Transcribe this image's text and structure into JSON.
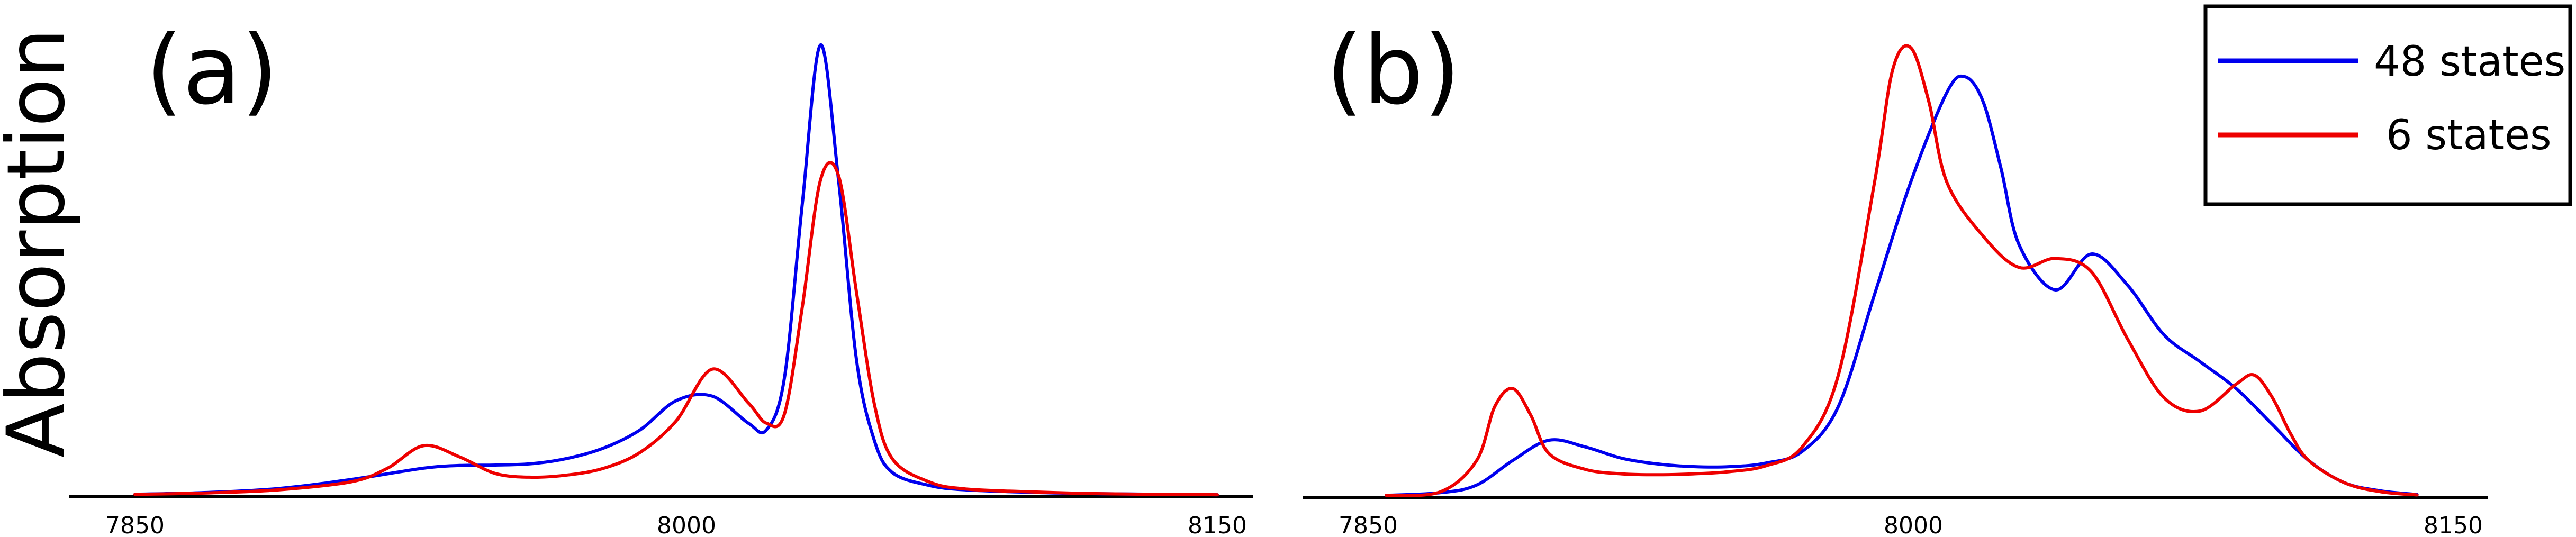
{
  "chart_data": [
    {
      "panel": "(a)",
      "type": "line",
      "ylabel": "Absorption",
      "xlim": [
        7850,
        8150
      ],
      "x_ticks": [
        "7850",
        "8000",
        "8150"
      ],
      "legend": "none",
      "series": [
        {
          "name": "48 states",
          "color": "#0000ee",
          "x": [
            7850,
            7870,
            7890,
            7910,
            7930,
            7940,
            7950,
            7960,
            7970,
            7980,
            7990,
            8000,
            8010,
            8020,
            8025,
            8030,
            8035,
            8040,
            8045,
            8050,
            8055,
            8060,
            8070,
            8080,
            8100,
            8120,
            8150
          ],
          "y": [
            0.002,
            0.006,
            0.015,
            0.035,
            0.06,
            0.066,
            0.067,
            0.07,
            0.082,
            0.105,
            0.145,
            0.21,
            0.22,
            0.16,
            0.145,
            0.26,
            0.65,
            1.0,
            0.7,
            0.3,
            0.12,
            0.05,
            0.022,
            0.012,
            0.006,
            0.003,
            0.001
          ]
        },
        {
          "color": "#ee0000",
          "x": [
            7850,
            7870,
            7890,
            7910,
            7920,
            7930,
            7940,
            7950,
            7960,
            7970,
            7980,
            7990,
            8000,
            8010,
            8020,
            8025,
            8030,
            8035,
            8040,
            8045,
            8050,
            8055,
            8060,
            8070,
            8080,
            8100,
            8120,
            8150
          ],
          "y": [
            0.002,
            0.005,
            0.012,
            0.03,
            0.06,
            0.11,
            0.085,
            0.048,
            0.04,
            0.045,
            0.06,
            0.095,
            0.165,
            0.28,
            0.205,
            0.16,
            0.18,
            0.42,
            0.7,
            0.71,
            0.45,
            0.2,
            0.08,
            0.03,
            0.014,
            0.007,
            0.003,
            0.001
          ]
        }
      ]
    },
    {
      "panel": "(b)",
      "type": "line",
      "xlim": [
        7850,
        8150
      ],
      "x_ticks": [
        "7850",
        "8000",
        "8150"
      ],
      "legend": "top-right",
      "series": [
        {
          "name": "48 states",
          "color": "#0000ee",
          "x": [
            7855,
            7870,
            7880,
            7890,
            7900,
            7910,
            7920,
            7930,
            7940,
            7950,
            7960,
            7970,
            7980,
            7990,
            8000,
            8010,
            8015,
            8020,
            8025,
            8030,
            8040,
            8050,
            8060,
            8070,
            8080,
            8090,
            8100,
            8110,
            8120,
            8130,
            8140
          ],
          "y": [
            0.002,
            0.008,
            0.025,
            0.08,
            0.125,
            0.11,
            0.085,
            0.072,
            0.066,
            0.066,
            0.074,
            0.1,
            0.2,
            0.45,
            0.7,
            0.9,
            0.935,
            0.88,
            0.73,
            0.56,
            0.46,
            0.54,
            0.47,
            0.36,
            0.3,
            0.24,
            0.16,
            0.08,
            0.03,
            0.012,
            0.004
          ]
        },
        {
          "name": "6 states",
          "color": "#ee0000",
          "x": [
            7855,
            7870,
            7880,
            7885,
            7890,
            7895,
            7900,
            7910,
            7920,
            7930,
            7940,
            7950,
            7960,
            7970,
            7980,
            7990,
            7995,
            8000,
            8005,
            8010,
            8020,
            8030,
            8040,
            8050,
            8060,
            8070,
            8080,
            8090,
            8095,
            8100,
            8105,
            8110,
            8120,
            8130,
            8140
          ],
          "y": [
            0.002,
            0.01,
            0.08,
            0.2,
            0.24,
            0.18,
            0.095,
            0.06,
            0.05,
            0.048,
            0.05,
            0.055,
            0.068,
            0.11,
            0.27,
            0.7,
            0.95,
            1.0,
            0.88,
            0.7,
            0.58,
            0.51,
            0.53,
            0.5,
            0.35,
            0.22,
            0.19,
            0.25,
            0.27,
            0.22,
            0.14,
            0.08,
            0.03,
            0.01,
            0.003
          ]
        }
      ]
    }
  ]
}
